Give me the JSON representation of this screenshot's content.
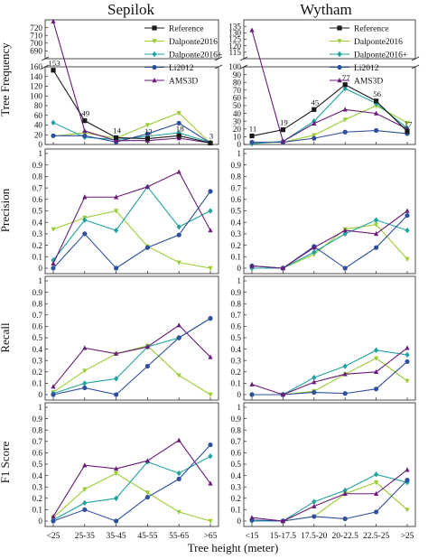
{
  "figure": {
    "columns": [
      "Sepilok",
      "Wytham"
    ],
    "row_labels": [
      "Tree Frequency",
      "Precision",
      "Recall",
      "F1 Score"
    ],
    "xlabel": "Tree height (meter)"
  },
  "legend": {
    "entries": [
      {
        "name": "Reference",
        "color": "#1a1a1a",
        "marker": "square"
      },
      {
        "name": "Dalponte2016",
        "color": "#9acd32",
        "marker": "triangle-down"
      },
      {
        "name": "Dalponte2016+",
        "color": "#20a39e",
        "marker": "diamond"
      },
      {
        "name": "Li2012",
        "color": "#2f4f9f",
        "marker": "circle"
      },
      {
        "name": "AMS3D",
        "color": "#6a1b7a",
        "marker": "triangle-up"
      }
    ]
  },
  "chart_data": [
    {
      "type": "line",
      "site": "Sepilok",
      "metric": "Tree Frequency",
      "categories": [
        "<25",
        "25-35",
        "35-45",
        "45-55",
        "55-65",
        ">65"
      ],
      "broken_axis": {
        "lower_ylim": [
          0,
          160
        ],
        "lower_ticks": [
          0,
          20,
          40,
          60,
          80,
          100,
          120,
          140,
          160
        ],
        "upper_ylim": [
          680,
          730
        ],
        "upper_ticks": [
          690,
          700,
          710,
          720
        ]
      },
      "series": [
        {
          "name": "Reference",
          "values": [
            153,
            49,
            14,
            12,
            18,
            3
          ],
          "labels": [
            "153",
            "49",
            "14",
            "12",
            "18",
            "3"
          ]
        },
        {
          "name": "Dalponte2016",
          "values": [
            17,
            24,
            13,
            40,
            65,
            3
          ]
        },
        {
          "name": "Dalponte2016+",
          "values": [
            45,
            15,
            10,
            17,
            24,
            4
          ]
        },
        {
          "name": "Li2012",
          "values": [
            18,
            18,
            5,
            22,
            44,
            3
          ]
        },
        {
          "name": "AMS3D",
          "values": [
            728,
            28,
            8,
            8,
            13,
            3
          ]
        }
      ]
    },
    {
      "type": "line",
      "site": "Wytham",
      "metric": "Tree Frequency",
      "categories": [
        "<15",
        "15-17.5",
        "17.5-20",
        "20-22.5",
        "22.5-25",
        ">25"
      ],
      "broken_axis": {
        "lower_ylim": [
          0,
          100
        ],
        "lower_ticks": [
          0,
          10,
          20,
          30,
          40,
          50,
          60,
          70,
          80,
          90,
          100
        ],
        "upper_ylim": [
          110,
          140
        ],
        "upper_ticks": [
          115,
          120,
          125,
          130,
          135
        ]
      },
      "series": [
        {
          "name": "Reference",
          "values": [
            11,
            19,
            45,
            77,
            56,
            17
          ],
          "labels": [
            "11",
            "19",
            "45",
            "77",
            "56",
            "17"
          ]
        },
        {
          "name": "Dalponte2016",
          "values": [
            2,
            3,
            12,
            32,
            50,
            28
          ]
        },
        {
          "name": "Dalponte2016+",
          "values": [
            1,
            4,
            30,
            72,
            53,
            21
          ]
        },
        {
          "name": "Li2012",
          "values": [
            3,
            3,
            8,
            16,
            18,
            14
          ]
        },
        {
          "name": "AMS3D",
          "values": [
            132,
            4,
            27,
            45,
            40,
            20
          ]
        }
      ]
    },
    {
      "type": "line",
      "site": "Sepilok",
      "metric": "Precision",
      "categories": [
        "<25",
        "25-35",
        "35-45",
        "45-55",
        "55-65",
        ">65"
      ],
      "ylim": [
        0,
        1
      ],
      "series": [
        {
          "name": "Dalponte2016",
          "values": [
            0.34,
            0.44,
            0.5,
            0.19,
            0.05,
            0.0
          ]
        },
        {
          "name": "Dalponte2016+",
          "values": [
            0.07,
            0.42,
            0.33,
            0.71,
            0.36,
            0.5
          ]
        },
        {
          "name": "Li2012",
          "values": [
            0.0,
            0.3,
            0.0,
            0.18,
            0.29,
            0.67
          ]
        },
        {
          "name": "AMS3D",
          "values": [
            0.04,
            0.62,
            0.62,
            0.71,
            0.84,
            0.33
          ]
        }
      ]
    },
    {
      "type": "line",
      "site": "Wytham",
      "metric": "Precision",
      "categories": [
        "<15",
        "15-17.5",
        "17.5-20",
        "20-22.5",
        "22.5-25",
        ">25"
      ],
      "ylim": [
        0,
        1
      ],
      "series": [
        {
          "name": "Dalponte2016",
          "values": [
            0.0,
            0.0,
            0.12,
            0.34,
            0.38,
            0.08
          ]
        },
        {
          "name": "Dalponte2016+",
          "values": [
            0.0,
            0.0,
            0.14,
            0.3,
            0.42,
            0.33
          ]
        },
        {
          "name": "Li2012",
          "values": [
            0.02,
            0.0,
            0.19,
            0.0,
            0.18,
            0.46
          ]
        },
        {
          "name": "AMS3D",
          "values": [
            0.02,
            0.0,
            0.18,
            0.33,
            0.3,
            0.5
          ]
        }
      ]
    },
    {
      "type": "line",
      "site": "Sepilok",
      "metric": "Recall",
      "categories": [
        "<25",
        "25-35",
        "35-45",
        "45-55",
        "55-65",
        ">65"
      ],
      "ylim": [
        0,
        1
      ],
      "series": [
        {
          "name": "Dalponte2016",
          "values": [
            0.02,
            0.21,
            0.36,
            0.43,
            0.17,
            0.0
          ]
        },
        {
          "name": "Dalponte2016+",
          "values": [
            0.01,
            0.1,
            0.14,
            0.42,
            0.5,
            0.67
          ]
        },
        {
          "name": "Li2012",
          "values": [
            0.0,
            0.06,
            0.0,
            0.25,
            0.5,
            0.67
          ]
        },
        {
          "name": "AMS3D",
          "values": [
            0.07,
            0.41,
            0.36,
            0.42,
            0.61,
            0.33
          ]
        }
      ]
    },
    {
      "type": "line",
      "site": "Wytham",
      "metric": "Recall",
      "categories": [
        "<15",
        "15-17.5",
        "17.5-20",
        "20-22.5",
        "22.5-25",
        ">25"
      ],
      "ylim": [
        0,
        1
      ],
      "series": [
        {
          "name": "Dalponte2016",
          "values": [
            0.0,
            0.0,
            0.03,
            0.18,
            0.32,
            0.12
          ]
        },
        {
          "name": "Dalponte2016+",
          "values": [
            0.0,
            0.0,
            0.15,
            0.25,
            0.39,
            0.35
          ]
        },
        {
          "name": "Li2012",
          "values": [
            0.0,
            0.0,
            0.02,
            0.01,
            0.05,
            0.29
          ]
        },
        {
          "name": "AMS3D",
          "values": [
            0.09,
            0.0,
            0.11,
            0.18,
            0.2,
            0.41
          ]
        }
      ]
    },
    {
      "type": "line",
      "site": "Sepilok",
      "metric": "F1 Score",
      "categories": [
        "<25",
        "25-35",
        "35-45",
        "45-55",
        "55-65",
        ">65"
      ],
      "ylim": [
        0,
        1
      ],
      "series": [
        {
          "name": "Dalponte2016",
          "values": [
            0.03,
            0.28,
            0.42,
            0.25,
            0.08,
            0.0
          ]
        },
        {
          "name": "Dalponte2016+",
          "values": [
            0.01,
            0.16,
            0.2,
            0.52,
            0.42,
            0.57
          ]
        },
        {
          "name": "Li2012",
          "values": [
            0.0,
            0.1,
            0.0,
            0.21,
            0.37,
            0.67
          ]
        },
        {
          "name": "AMS3D",
          "values": [
            0.04,
            0.49,
            0.46,
            0.53,
            0.71,
            0.33
          ]
        }
      ]
    },
    {
      "type": "line",
      "site": "Wytham",
      "metric": "F1 Score",
      "categories": [
        "<15",
        "15-17.5",
        "17.5-20",
        "20-22.5",
        "22.5-25",
        ">25"
      ],
      "ylim": [
        0,
        1
      ],
      "series": [
        {
          "name": "Dalponte2016",
          "values": [
            0.0,
            0.0,
            0.04,
            0.24,
            0.34,
            0.1
          ]
        },
        {
          "name": "Dalponte2016+",
          "values": [
            0.0,
            0.0,
            0.17,
            0.27,
            0.41,
            0.34
          ]
        },
        {
          "name": "Li2012",
          "values": [
            0.01,
            0.0,
            0.04,
            0.02,
            0.08,
            0.36
          ]
        },
        {
          "name": "AMS3D",
          "values": [
            0.03,
            0.0,
            0.13,
            0.24,
            0.24,
            0.45
          ]
        }
      ]
    }
  ]
}
